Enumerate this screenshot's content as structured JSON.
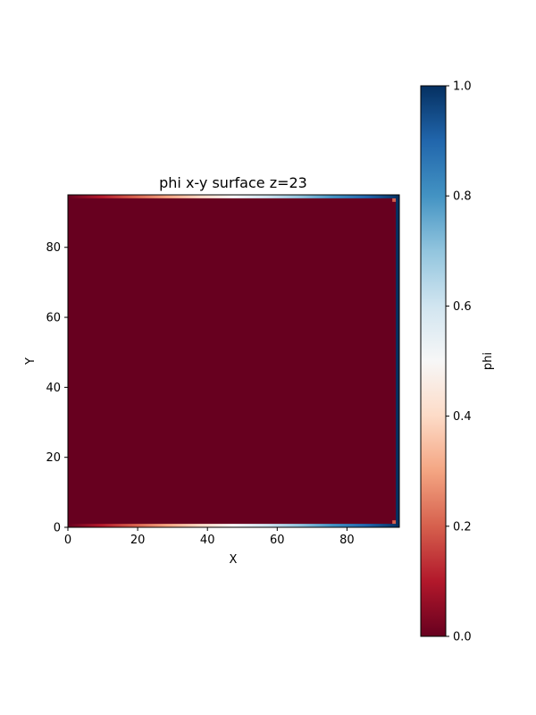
{
  "chart_data": {
    "type": "heatmap",
    "title": "phi x-y surface z=23",
    "xlabel": "X",
    "ylabel": "Y",
    "xlim": [
      0,
      95
    ],
    "ylim": [
      0,
      95
    ],
    "x_ticks": [
      0,
      20,
      40,
      60,
      80
    ],
    "y_ticks": [
      0,
      20,
      40,
      60,
      80
    ],
    "colormap": "RdBu",
    "colormap_stops": [
      "#67001f",
      "#b2182b",
      "#d6604d",
      "#f4a582",
      "#fddbc7",
      "#f7f7f7",
      "#d1e5f0",
      "#92c5de",
      "#4393c3",
      "#2166ac",
      "#053061"
    ],
    "colorbar": {
      "label": "phi",
      "range": [
        0,
        1
      ],
      "ticks": [
        "0.0",
        "0.2",
        "0.4",
        "0.6",
        "0.8",
        "1.0"
      ]
    },
    "interior_value": 0.0,
    "boundary_gradients": {
      "bottom_row_y": 0,
      "top_row_y": 94,
      "value_from": 0.0,
      "value_to": 1.0
    },
    "right_column_value": 1.0,
    "corner_marks_value": 0.2
  }
}
